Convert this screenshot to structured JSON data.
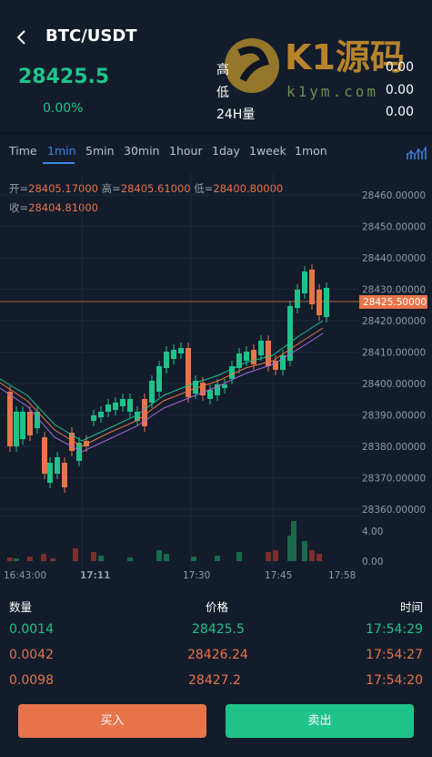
{
  "header": {
    "pair": "BTC/USDT",
    "price": "28425.5",
    "change_pct": "0.00%",
    "stats": [
      {
        "label": "高",
        "value": "0.00"
      },
      {
        "label": "低",
        "value": "0.00"
      },
      {
        "label": "24H量",
        "value": "0.00"
      }
    ],
    "watermark": {
      "brand": "K1源码",
      "site": "k1ym.com"
    }
  },
  "tabs": [
    {
      "label": "Time",
      "active": false
    },
    {
      "label": "1min",
      "active": true
    },
    {
      "label": "5min",
      "active": false
    },
    {
      "label": "30min",
      "active": false
    },
    {
      "label": "1hour",
      "active": false
    },
    {
      "label": "1day",
      "active": false
    },
    {
      "label": "1week",
      "active": false
    },
    {
      "label": "1mon",
      "active": false
    }
  ],
  "ohlc": {
    "open_label": "开=",
    "open": "28405.17000",
    "high_label": "高=",
    "high": "28405.61000",
    "low_label": "低=",
    "low": "28400.80000",
    "close_label": "收=",
    "close": "28404.81000"
  },
  "chart": {
    "y_ticks": [
      "28460.00000",
      "28450.00000",
      "28440.00000",
      "28430.00000",
      "28420.00000",
      "28410.00000",
      "28400.00000",
      "28390.00000",
      "28380.00000",
      "28370.00000",
      "28360.00000"
    ],
    "current_price_label": "28425.50000",
    "vol_ticks": [
      "4.00",
      "0.00"
    ],
    "x_ticks": [
      "16:43:00",
      "17:11",
      "17:30",
      "17:45",
      "17:58"
    ],
    "up_color": "#1fc38a",
    "down_color": "#e8744a"
  },
  "trades": {
    "headers": {
      "qty": "数量",
      "price": "价格",
      "time": "时间"
    },
    "rows": [
      {
        "qty": "0.0014",
        "price": "28425.5",
        "time": "17:54:29",
        "side": "buy"
      },
      {
        "qty": "0.0042",
        "price": "28426.24",
        "time": "17:54:27",
        "side": "sell"
      },
      {
        "qty": "0.0098",
        "price": "28427.2",
        "time": "17:54:20",
        "side": "sell"
      }
    ]
  },
  "actions": {
    "buy": "买入",
    "sell": "卖出"
  }
}
